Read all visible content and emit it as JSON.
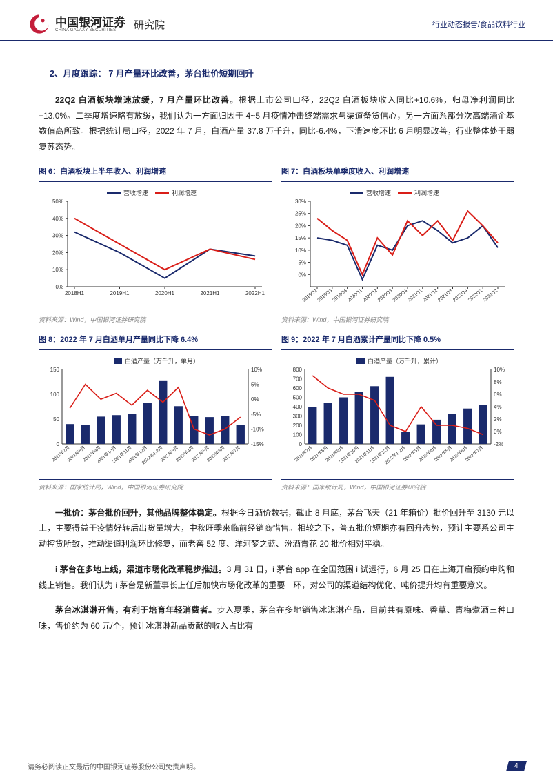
{
  "header": {
    "logo_cn": "中国银河证券",
    "logo_en": "CHINA GALAXY SECURITIES",
    "suffix": "研究院",
    "right": "行业动态报告/食品饮料行业"
  },
  "section": {
    "title": "2、月度跟踪：  7 月产量环比改善，茅台批价短期回升",
    "p1_bold": "22Q2 白酒板块增速放缓，7 月产量环比改善。",
    "p1_rest": "根据上市公司口径，22Q2 白酒板块收入同比+10.6%，归母净利润同比+13.0%。二季度增速略有放缓，我们认为一方面归因于 4~5 月疫情冲击终端需求与渠道备货信心，另一方面系部分次高端酒企基数偏高所致。根据统计局口径，2022 年 7 月，白酒产量 37.8 万千升，同比-6.4%，下滑速度环比 6 月明显改善，行业整体处于弱复苏态势。"
  },
  "chart6": {
    "title": "图 6：白酒板块上半年收入、利润增速",
    "legend": [
      "营收增速",
      "利润增速"
    ],
    "legend_colors": [
      "#1a2a6c",
      "#d91e18"
    ],
    "x_labels": [
      "2018H1",
      "2019H1",
      "2020H1",
      "2021H1",
      "2022H1"
    ],
    "y_ticks": [
      0,
      10,
      20,
      30,
      40,
      50
    ],
    "series1": [
      32,
      20,
      5,
      22,
      18
    ],
    "series2": [
      40,
      25,
      10,
      22,
      16
    ],
    "ylim": [
      0,
      50
    ],
    "bg": "#ffffff",
    "grid": "#e0e0e0",
    "source": "资料来源：Wind，中国银河证券研究院"
  },
  "chart7": {
    "title": "图 7：白酒板块单季度收入、利润增速",
    "legend": [
      "营收增速",
      "利润增速"
    ],
    "legend_colors": [
      "#1a2a6c",
      "#d91e18"
    ],
    "x_labels": [
      "2019Q2",
      "2019Q3",
      "2019Q4",
      "2020Q1",
      "2020Q2",
      "2020Q3",
      "2020Q4",
      "2021Q1",
      "2021Q2",
      "2021Q3",
      "2021Q4",
      "2022Q1",
      "2022Q2"
    ],
    "y_ticks": [
      0,
      5,
      10,
      15,
      20,
      25,
      30
    ],
    "series1": [
      15,
      14,
      12,
      -2,
      12,
      10,
      20,
      22,
      18,
      13,
      15,
      20,
      11
    ],
    "series2": [
      23,
      18,
      14,
      0,
      15,
      8,
      22,
      16,
      22,
      14,
      26,
      20,
      13
    ],
    "ylim": [
      -5,
      30
    ],
    "source": "资料来源：Wind，中国银河证券研究院"
  },
  "chart8": {
    "title": "图 8：2022 年 7 月白酒单月产量同比下降 6.4%",
    "legend": [
      "白酒产量（万千升，单月）"
    ],
    "bar_color": "#1a2a6c",
    "line_color": "#d91e18",
    "x_labels": [
      "2021年7月",
      "2021年8月",
      "2021年9月",
      "2021年10月",
      "2021年11月",
      "2021年12月",
      "2022年1-2月",
      "2022年3月",
      "2022年4月",
      "2022年5月",
      "2022年6月",
      "2022年7月"
    ],
    "yl_ticks": [
      0,
      50,
      100,
      150
    ],
    "yr_ticks": [
      -15,
      -10,
      -5,
      0,
      5,
      10
    ],
    "bars": [
      40,
      38,
      55,
      58,
      60,
      82,
      128,
      76,
      56,
      54,
      56,
      38
    ],
    "line": [
      -3,
      5,
      0,
      2,
      -2,
      3,
      -1,
      4,
      -10,
      -12,
      -10,
      -6
    ],
    "source": "资料来源：国家统计局，Wind，中国银河证券研究院"
  },
  "chart9": {
    "title": "图 9：2022 年 7 月白酒累计产量同比下降 0.5%",
    "legend": [
      "白酒产量（万千升，累计）"
    ],
    "bar_color": "#1a2a6c",
    "line_color": "#d91e18",
    "x_labels": [
      "2021年7月",
      "2021年8月",
      "2021年9月",
      "2021年10月",
      "2021年11月",
      "2021年12月",
      "2022年1-2月",
      "2022年3月",
      "2022年4月",
      "2022年5月",
      "2022年6月",
      "2022年7月"
    ],
    "yl_ticks": [
      0,
      100,
      200,
      300,
      400,
      500,
      600,
      700,
      800
    ],
    "yr_ticks": [
      -2,
      0,
      2,
      4,
      6,
      8,
      10
    ],
    "bars": [
      400,
      440,
      500,
      560,
      620,
      720,
      130,
      210,
      260,
      320,
      380,
      420
    ],
    "line": [
      9,
      7,
      6,
      6,
      5,
      1,
      0,
      4,
      1,
      1,
      0.5,
      -0.5
    ],
    "source": "资料来源：国家统计局，Wind，中国银河证券研究院"
  },
  "body2": {
    "p2_bold": "一批价：茅台批价回升，其他品牌整体稳定。",
    "p2_rest": "根据今日酒价数据，截止 8 月底，茅台飞天（21 年箱价）批价回升至 3130 元以上，主要得益于疫情好转后出货量增大，中秋旺季来临前经销商惜售。相较之下，普五批价短期亦有回升态势，预计主要系公司主动控货所致，推动渠道利润环比修复，而老窖 52 度、洋河梦之蓝、汾酒青花 20 批价相对平稳。",
    "p3_bold": "i 茅台在多地上线，渠道市场化改革稳步推进。",
    "p3_rest": "3 月 31 日，i 茅台 app 在全国范围 i 试运行，6 月 25 日在上海开启预约申购和线上销售。我们认为 i 茅台是新董事长上任后加快市场化改革的重要一环，对公司的渠道结构优化、吨价提升均有重要意义。",
    "p4_bold": "茅台冰淇淋开售，有利于培育年轻消费者。",
    "p4_rest": "步入夏季，茅台在多地销售冰淇淋产品，目前共有原味、香草、青梅煮酒三种口味，售价约为 60 元/个，预计冰淇淋新品贡献的收入占比有"
  },
  "footer": {
    "text": "请务必阅读正文最后的中国银河证券股份公司免责声明。",
    "page": "4"
  }
}
